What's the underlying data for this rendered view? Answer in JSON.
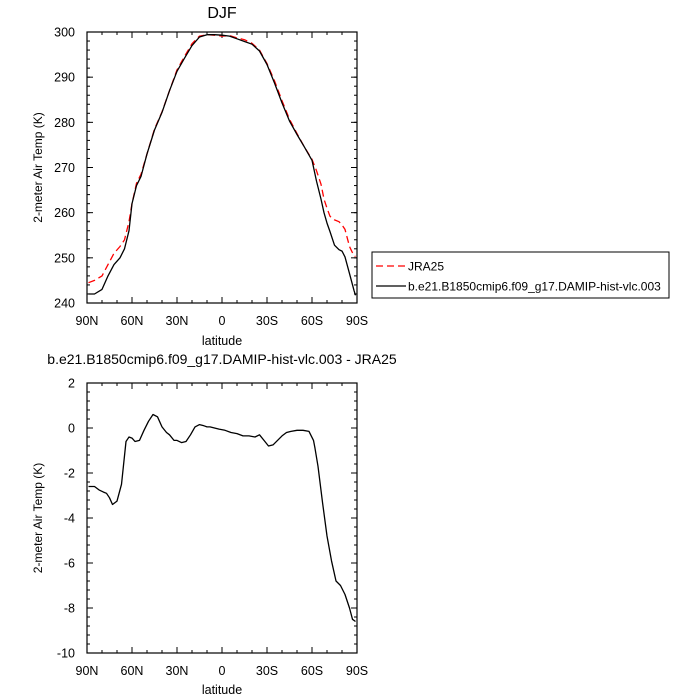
{
  "chart_data": [
    {
      "type": "line",
      "title": "DJF",
      "xlabel": "latitude",
      "ylabel": "2-meter Air Temp (K)",
      "xlim": [
        90,
        -90
      ],
      "ylim": [
        240,
        300
      ],
      "x_ticks": [
        "90N",
        "60N",
        "30N",
        "0",
        "30S",
        "60S",
        "90S"
      ],
      "x_tick_values": [
        90,
        60,
        30,
        0,
        -30,
        -60,
        -90
      ],
      "y_ticks": [
        240,
        250,
        260,
        270,
        280,
        290,
        300
      ],
      "legend": [
        "JRA25",
        "b.e21.B1850cmip6.f09_g17.DAMIP-hist-vlc.003"
      ],
      "legend_position": "outside-right",
      "series": [
        {
          "name": "JRA25",
          "color": "#ff0000",
          "style": "dashed",
          "x": [
            89,
            85,
            80,
            76,
            72,
            68,
            65,
            62,
            60,
            57,
            54,
            50,
            45,
            40,
            35,
            30,
            25,
            20,
            15,
            10,
            5,
            0,
            -5,
            -10,
            -15,
            -20,
            -25,
            -30,
            -35,
            -40,
            -45,
            -50,
            -55,
            -60,
            -63,
            -66,
            -68,
            -70,
            -72,
            -75,
            -78,
            -80,
            -82,
            -85,
            -88,
            -89
          ],
          "values": [
            244.5,
            245,
            246,
            248.5,
            251,
            252.5,
            254,
            258,
            262,
            266.5,
            268.5,
            273,
            278.5,
            282.3,
            287,
            291.6,
            294.6,
            297.4,
            299.1,
            299.4,
            299.3,
            299.1,
            299.2,
            298.7,
            298.3,
            297.5,
            296,
            293,
            289.2,
            284.8,
            280.7,
            277.5,
            274.5,
            271.8,
            269.3,
            266.3,
            263,
            261,
            259.2,
            258.4,
            258,
            257.3,
            256.3,
            252.5,
            250.4,
            250.3
          ]
        },
        {
          "name": "b.e21.B1850cmip6.f09_g17.DAMIP-hist-vlc.003",
          "color": "#000000",
          "style": "solid",
          "x": [
            89,
            85,
            80,
            76,
            72,
            68,
            65,
            62,
            60,
            57,
            54,
            50,
            45,
            40,
            35,
            30,
            25,
            20,
            15,
            10,
            5,
            0,
            -5,
            -10,
            -15,
            -20,
            -25,
            -30,
            -35,
            -40,
            -45,
            -50,
            -55,
            -60,
            -63,
            -66,
            -68,
            -70,
            -72,
            -75,
            -78,
            -80,
            -82,
            -85,
            -88,
            -89
          ],
          "values": [
            242,
            242,
            243,
            246,
            248.5,
            250,
            252,
            256,
            262,
            266,
            268,
            273,
            278.3,
            282.2,
            287,
            291.3,
            294.2,
            297,
            298.9,
            299.4,
            299.4,
            299.3,
            299.1,
            298.5,
            297.9,
            297.3,
            295.8,
            292.8,
            288.7,
            284.3,
            280.3,
            277.3,
            274.5,
            271.6,
            267,
            263,
            260,
            257.7,
            255.8,
            252.8,
            251.8,
            251.5,
            250.2,
            246.5,
            242.8,
            241.7
          ]
        }
      ]
    },
    {
      "type": "line",
      "title": "b.e21.B1850cmip6.f09_g17.DAMIP-hist-vlc.003 - JRA25",
      "xlabel": "latitude",
      "ylabel": "2-meter Air Temp (K)",
      "xlim": [
        90,
        -90
      ],
      "ylim": [
        -10,
        2
      ],
      "x_ticks": [
        "90N",
        "60N",
        "30N",
        "0",
        "30S",
        "60S",
        "90S"
      ],
      "x_tick_values": [
        90,
        60,
        30,
        0,
        -30,
        -60,
        -90
      ],
      "y_ticks": [
        -10,
        -8,
        -6,
        -4,
        -2,
        0,
        2
      ],
      "series": [
        {
          "color": "#000000",
          "style": "solid",
          "x": [
            89,
            85,
            82,
            79,
            77,
            75,
            73,
            70,
            67,
            64,
            62,
            60,
            58,
            55,
            52,
            49,
            46,
            43,
            40,
            37,
            35,
            32,
            30,
            27,
            24,
            21,
            18,
            15,
            12,
            10,
            8,
            5,
            2,
            -2,
            -6,
            -10,
            -14,
            -18,
            -22,
            -25,
            -28,
            -31,
            -34,
            -37,
            -40,
            -43,
            -46,
            -50,
            -54,
            -58,
            -61,
            -62,
            -64,
            -67,
            -70,
            -73,
            -76,
            -79,
            -82,
            -85,
            -87,
            -89
          ],
          "values": [
            -2.6,
            -2.6,
            -2.75,
            -2.85,
            -2.9,
            -3.1,
            -3.4,
            -3.25,
            -2.5,
            -0.6,
            -0.4,
            -0.45,
            -0.6,
            -0.55,
            -0.1,
            0.3,
            0.6,
            0.5,
            0.05,
            -0.2,
            -0.3,
            -0.55,
            -0.55,
            -0.65,
            -0.6,
            -0.3,
            0.05,
            0.15,
            0.1,
            0.05,
            0.05,
            0.0,
            -0.05,
            -0.1,
            -0.2,
            -0.25,
            -0.35,
            -0.35,
            -0.4,
            -0.3,
            -0.55,
            -0.8,
            -0.75,
            -0.55,
            -0.35,
            -0.2,
            -0.15,
            -0.1,
            -0.1,
            -0.15,
            -0.55,
            -0.9,
            -1.7,
            -3.3,
            -4.8,
            -5.9,
            -6.8,
            -7.0,
            -7.4,
            -8.0,
            -8.5,
            -8.6
          ]
        }
      ]
    }
  ]
}
